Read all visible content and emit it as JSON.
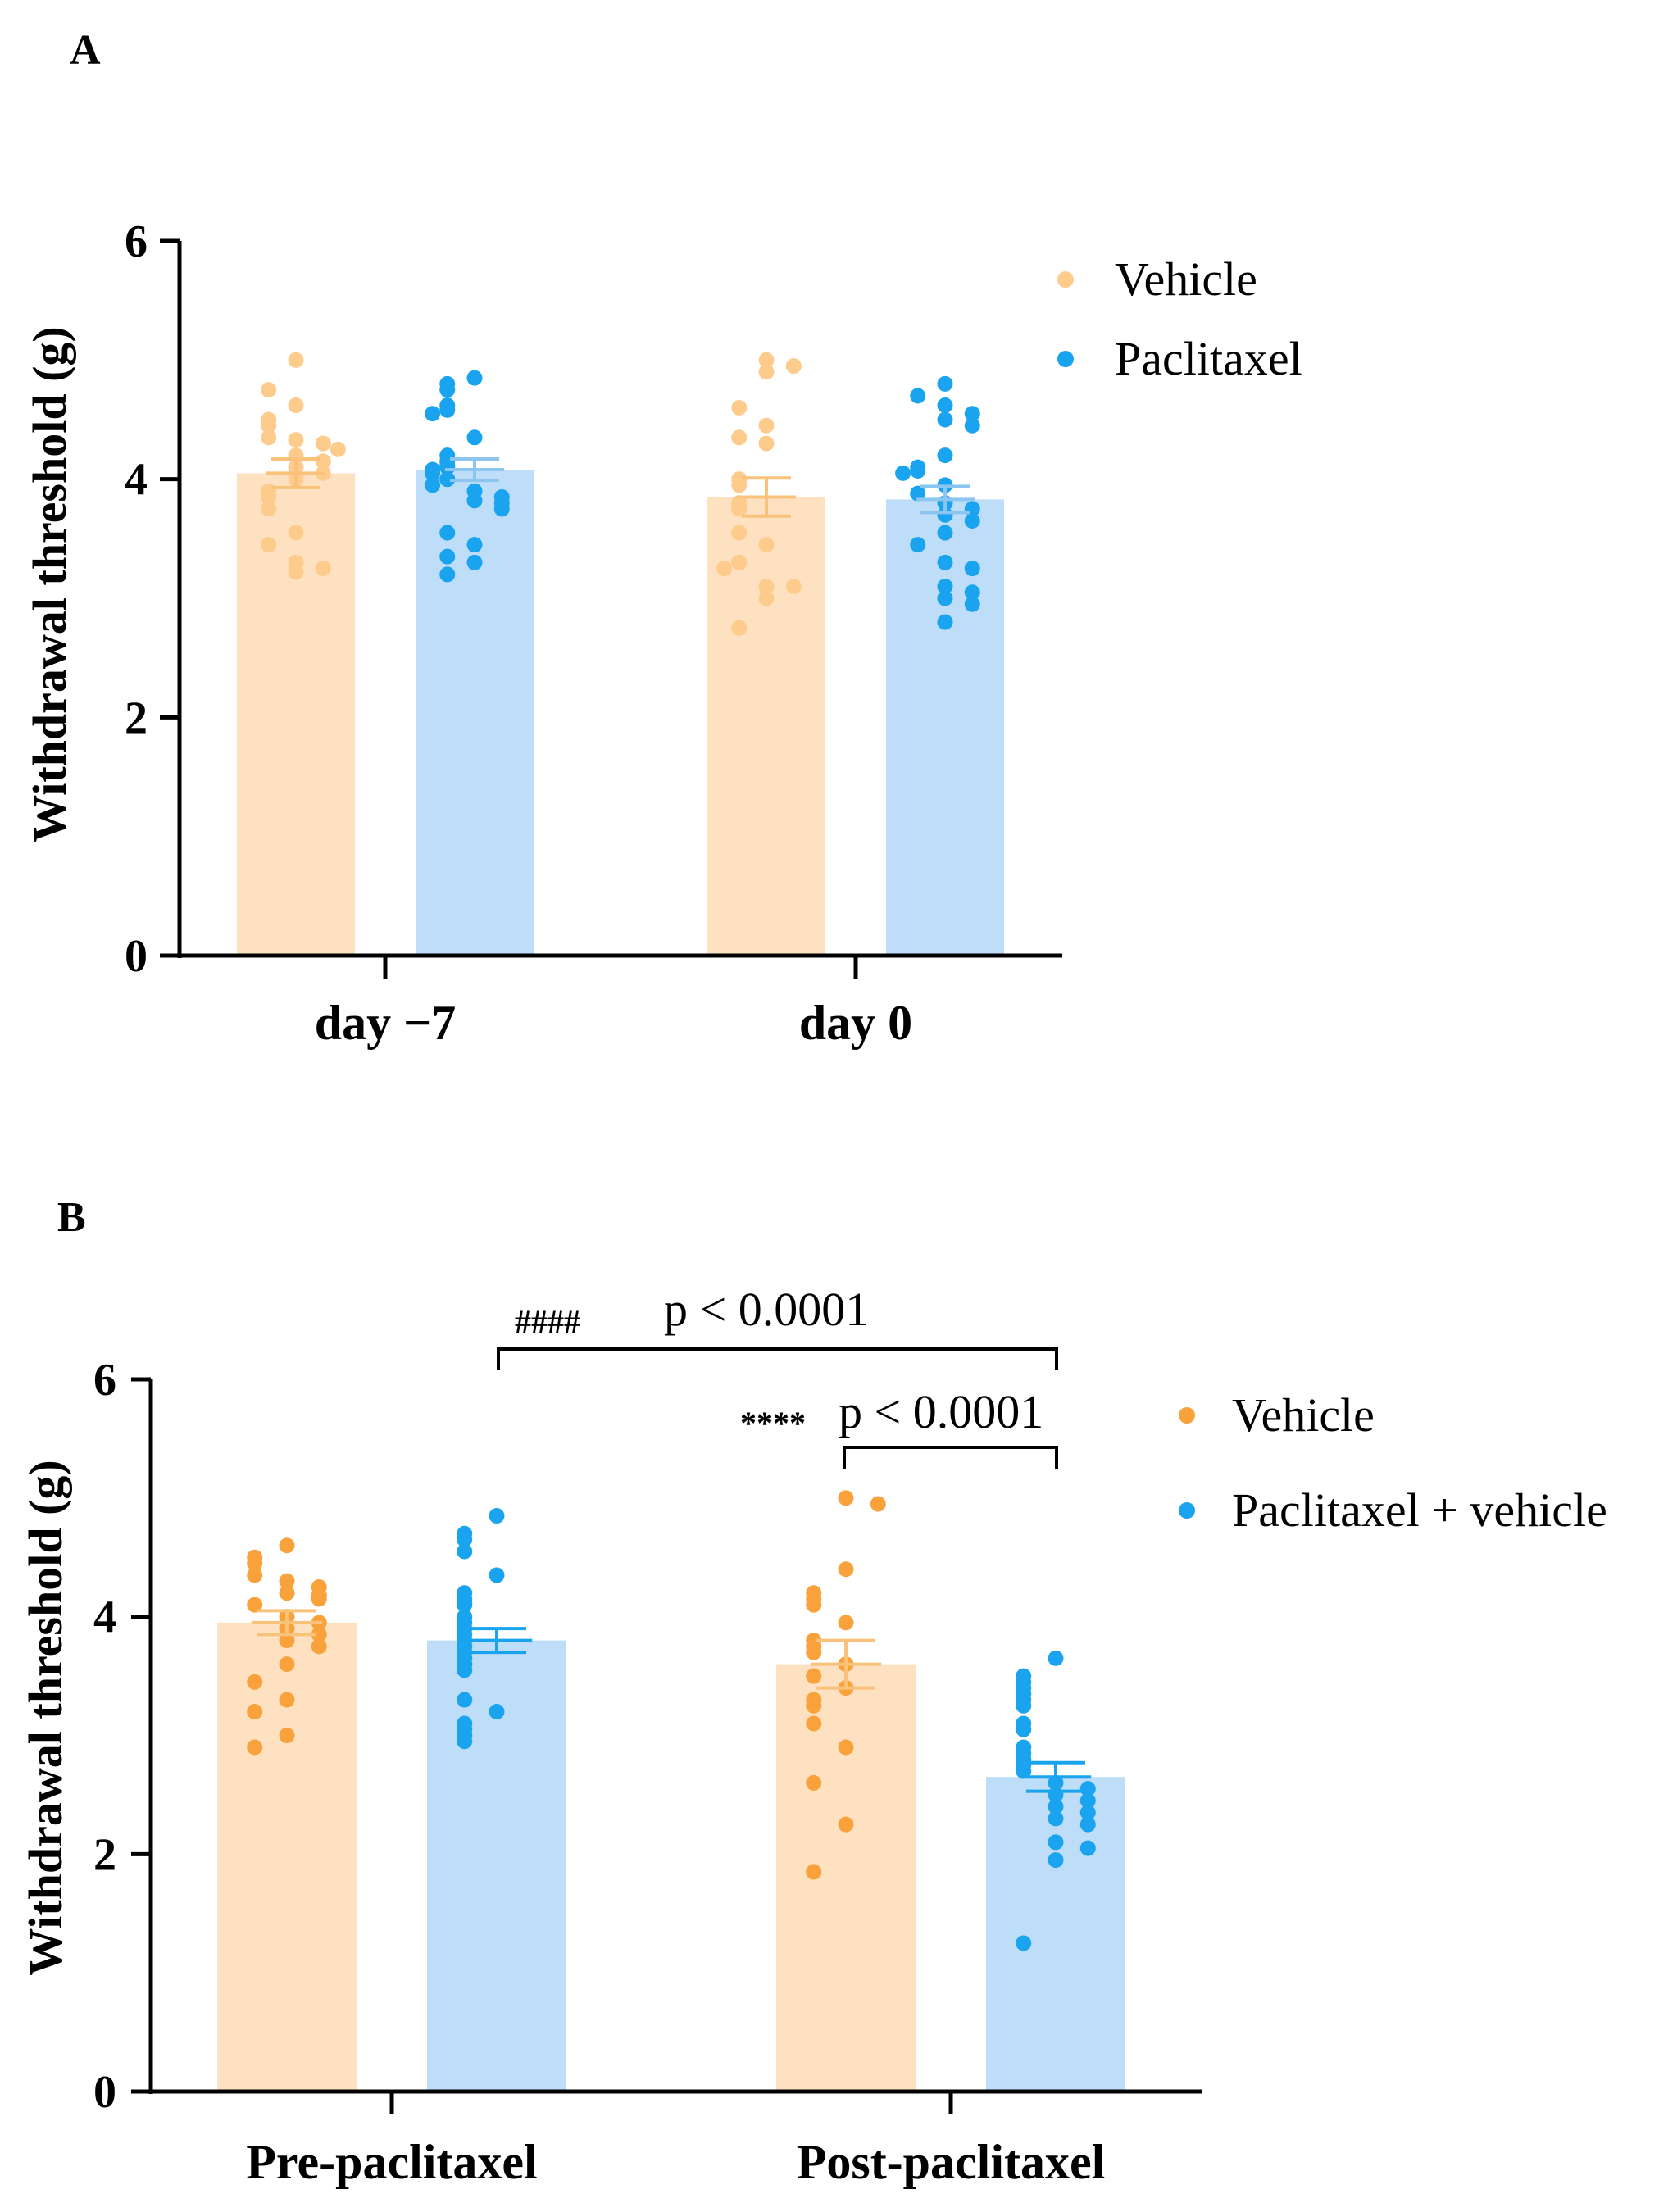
{
  "chart_data": [
    {
      "panel": "A",
      "type": "bar",
      "ylabel": "Withdrawal threshold (g)",
      "ylim": [
        0,
        6
      ],
      "yticks": [
        0,
        2,
        4,
        6
      ],
      "categories": [
        "day −7",
        "day 0"
      ],
      "colors": {
        "bar": [
          "#FDE1C0",
          "#BEDDF8"
        ],
        "point": [
          "#FDCB8C",
          "#1AA3EE"
        ],
        "err": [
          "#F9C27A",
          "#8CC6F0"
        ]
      },
      "series": [
        {
          "name": "Vehicle",
          "means": [
            4.05,
            3.85
          ],
          "sem": [
            0.12,
            0.16
          ],
          "points": [
            [
              5.0,
              4.75,
              4.62,
              4.5,
              4.45,
              4.35,
              4.33,
              4.3,
              4.3,
              4.25,
              4.2,
              4.15,
              4.1,
              4.05,
              4.0,
              3.9,
              3.85,
              3.75,
              3.55,
              3.45,
              3.3,
              3.25,
              3.22
            ],
            [
              5.0,
              4.95,
              4.9,
              4.6,
              4.45,
              4.35,
              4.3,
              4.0,
              3.95,
              3.8,
              3.75,
              3.55,
              3.45,
              3.3,
              3.3,
              3.25,
              3.1,
              3.1,
              3.0,
              2.75
            ]
          ]
        },
        {
          "name": "Paclitaxel",
          "means": [
            4.08,
            3.83
          ],
          "sem": [
            0.09,
            0.11
          ],
          "points": [
            [
              4.85,
              4.8,
              4.75,
              4.62,
              4.58,
              4.55,
              4.35,
              4.2,
              4.15,
              4.12,
              4.1,
              4.08,
              4.05,
              4.0,
              4.0,
              3.95,
              3.9,
              3.85,
              3.82,
              3.8,
              3.75,
              3.55,
              3.45,
              3.35,
              3.3,
              3.2
            ],
            [
              4.8,
              4.7,
              4.62,
              4.55,
              4.5,
              4.45,
              4.2,
              4.1,
              4.07,
              4.05,
              3.95,
              3.88,
              3.8,
              3.75,
              3.7,
              3.65,
              3.55,
              3.45,
              3.3,
              3.25,
              3.1,
              3.05,
              3.0,
              2.95,
              2.8
            ]
          ]
        }
      ]
    },
    {
      "panel": "B",
      "type": "bar",
      "ylabel": "Withdrawal threshold (g)",
      "ylim": [
        0,
        6
      ],
      "yticks": [
        0,
        2,
        4,
        6
      ],
      "categories": [
        "Pre-paclitaxel",
        "Post-paclitaxel"
      ],
      "colors": {
        "bar": [
          "#FDE1C0",
          "#BEDDF8"
        ],
        "point": [
          "#F9A23C",
          "#1AA3EE"
        ],
        "err": [
          "#F9C27A",
          "#1AA3EE"
        ]
      },
      "series": [
        {
          "name": "Vehicle",
          "means": [
            3.95,
            3.6
          ],
          "sem": [
            0.1,
            0.2
          ],
          "points": [
            [
              4.6,
              4.5,
              4.45,
              4.35,
              4.3,
              4.25,
              4.2,
              4.18,
              4.15,
              4.1,
              4.0,
              3.95,
              3.9,
              3.85,
              3.8,
              3.75,
              3.6,
              3.45,
              3.3,
              3.2,
              3.0,
              2.9
            ],
            [
              5.0,
              4.95,
              4.4,
              4.2,
              4.15,
              4.1,
              3.95,
              3.8,
              3.75,
              3.7,
              3.6,
              3.5,
              3.4,
              3.3,
              3.25,
              3.1,
              2.9,
              2.6,
              2.25,
              1.85
            ]
          ]
        },
        {
          "name": "Paclitaxel + vehicle",
          "means": [
            3.8,
            2.65
          ],
          "sem": [
            0.1,
            0.12
          ],
          "points": [
            [
              4.85,
              4.7,
              4.65,
              4.55,
              4.35,
              4.2,
              4.15,
              4.12,
              4.1,
              4.0,
              3.95,
              3.9,
              3.85,
              3.8,
              3.75,
              3.7,
              3.65,
              3.6,
              3.55,
              3.3,
              3.2,
              3.1,
              3.05,
              3.0,
              2.95
            ],
            [
              3.65,
              3.5,
              3.45,
              3.4,
              3.35,
              3.3,
              3.25,
              3.1,
              3.05,
              2.9,
              2.85,
              2.8,
              2.75,
              2.7,
              2.6,
              2.55,
              2.5,
              2.45,
              2.4,
              2.35,
              2.3,
              2.25,
              2.1,
              2.05,
              1.95,
              1.25
            ]
          ]
        }
      ],
      "annotations": [
        {
          "stars": "####",
          "text": "p < 0.0001"
        },
        {
          "stars": "****",
          "text": "p < 0.0001"
        }
      ]
    }
  ]
}
